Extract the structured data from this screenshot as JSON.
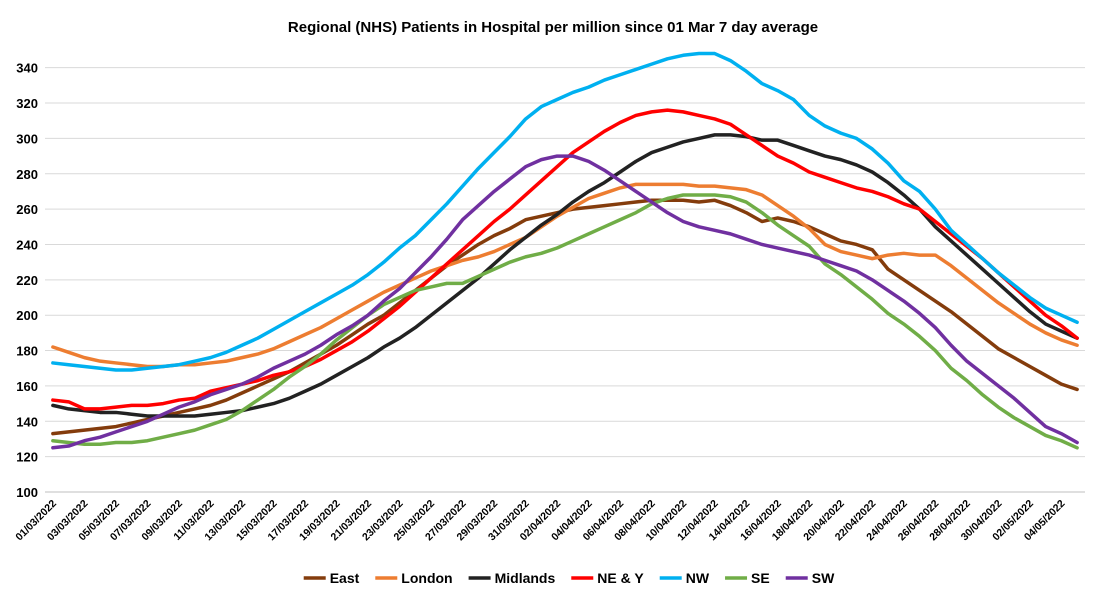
{
  "chart_data": {
    "type": "line",
    "title": "Regional (NHS) Patients in Hospital per million since 01 Mar 7 day average",
    "categories": [
      "01/03/2022",
      null,
      "03/03/2022",
      null,
      "05/03/2022",
      null,
      "07/03/2022",
      null,
      "09/03/2022",
      null,
      "11/03/2022",
      null,
      "13/03/2022",
      null,
      "15/03/2022",
      null,
      "17/03/2022",
      null,
      "19/03/2022",
      null,
      "21/03/2022",
      null,
      "23/03/2022",
      null,
      "25/03/2022",
      null,
      "27/03/2022",
      null,
      "29/03/2022",
      null,
      "31/03/2022",
      null,
      "02/04/2022",
      null,
      "04/04/2022",
      null,
      "06/04/2022",
      null,
      "08/04/2022",
      null,
      "10/04/2022",
      null,
      "12/04/2022",
      null,
      "14/04/2022",
      null,
      "16/04/2022",
      null,
      "18/04/2022",
      null,
      "20/04/2022",
      null,
      "22/04/2022",
      null,
      "24/04/2022",
      null,
      "26/04/2022",
      null,
      "28/04/2022",
      null,
      "30/04/2022",
      null,
      "02/05/2022",
      null,
      "04/05/2022",
      null
    ],
    "series": [
      {
        "name": "East",
        "color": "#843c0c",
        "values": [
          133,
          134,
          135,
          136,
          137,
          139,
          141,
          143,
          145,
          147,
          149,
          152,
          156,
          160,
          164,
          168,
          173,
          178,
          183,
          189,
          195,
          200,
          207,
          214,
          221,
          228,
          234,
          240,
          245,
          249,
          254,
          256,
          258,
          260,
          261,
          262,
          263,
          264,
          265,
          265,
          265,
          264,
          265,
          262,
          258,
          253,
          255,
          253,
          250,
          246,
          242,
          240,
          237,
          226,
          220,
          214,
          208,
          202,
          195,
          188,
          181,
          176,
          171,
          166,
          161,
          158
        ]
      },
      {
        "name": "London",
        "color": "#ed7d31",
        "values": [
          182,
          179,
          176,
          174,
          173,
          172,
          171,
          171,
          172,
          172,
          173,
          174,
          176,
          178,
          181,
          185,
          189,
          193,
          198,
          203,
          208,
          213,
          217,
          221,
          225,
          228,
          231,
          233,
          236,
          240,
          244,
          250,
          256,
          261,
          266,
          269,
          272,
          274,
          274,
          274,
          274,
          273,
          273,
          272,
          271,
          268,
          262,
          256,
          249,
          240,
          236,
          234,
          232,
          234,
          235,
          234,
          234,
          228,
          221,
          214,
          207,
          201,
          195,
          190,
          186,
          183
        ]
      },
      {
        "name": "Midlands",
        "color": "#222222",
        "values": [
          149,
          147,
          146,
          145,
          145,
          144,
          143,
          143,
          143,
          143,
          144,
          145,
          146,
          148,
          150,
          153,
          157,
          161,
          166,
          171,
          176,
          182,
          187,
          193,
          200,
          207,
          214,
          221,
          229,
          237,
          244,
          251,
          257,
          264,
          270,
          275,
          281,
          287,
          292,
          295,
          298,
          300,
          302,
          302,
          301,
          299,
          299,
          296,
          293,
          290,
          288,
          285,
          281,
          275,
          268,
          260,
          250,
          242,
          234,
          226,
          218,
          210,
          202,
          195,
          191,
          187
        ]
      },
      {
        "name": "NE & Y",
        "color": "#ff0000",
        "values": [
          152,
          151,
          147,
          147,
          148,
          149,
          149,
          150,
          152,
          153,
          157,
          159,
          161,
          163,
          166,
          168,
          171,
          175,
          180,
          185,
          191,
          198,
          205,
          213,
          221,
          229,
          237,
          245,
          253,
          260,
          268,
          276,
          284,
          292,
          298,
          304,
          309,
          313,
          315,
          316,
          315,
          313,
          311,
          308,
          302,
          296,
          290,
          286,
          281,
          278,
          275,
          272,
          270,
          267,
          263,
          260,
          253,
          246,
          239,
          232,
          224,
          216,
          208,
          200,
          194,
          187
        ]
      },
      {
        "name": "NW",
        "color": "#00b0f0",
        "values": [
          173,
          172,
          171,
          170,
          169,
          169,
          170,
          171,
          172,
          174,
          176,
          179,
          183,
          187,
          192,
          197,
          202,
          207,
          212,
          217,
          223,
          230,
          238,
          245,
          254,
          263,
          273,
          283,
          292,
          301,
          311,
          318,
          322,
          326,
          329,
          333,
          336,
          339,
          342,
          345,
          347,
          348,
          348,
          344,
          338,
          331,
          327,
          322,
          313,
          307,
          303,
          300,
          294,
          286,
          276,
          270,
          260,
          248,
          240,
          232,
          224,
          217,
          210,
          204,
          200,
          196
        ]
      },
      {
        "name": "SE",
        "color": "#70ad47",
        "values": [
          129,
          128,
          127,
          127,
          128,
          128,
          129,
          131,
          133,
          135,
          138,
          141,
          146,
          152,
          158,
          165,
          171,
          178,
          186,
          193,
          200,
          206,
          210,
          214,
          216,
          218,
          218,
          222,
          226,
          230,
          233,
          235,
          238,
          242,
          246,
          250,
          254,
          258,
          263,
          266,
          268,
          268,
          268,
          267,
          264,
          258,
          251,
          245,
          239,
          229,
          223,
          216,
          209,
          201,
          195,
          188,
          180,
          170,
          163,
          155,
          148,
          142,
          137,
          132,
          129,
          125
        ]
      },
      {
        "name": "SW",
        "color": "#7030a0",
        "values": [
          125,
          126,
          129,
          131,
          134,
          137,
          140,
          144,
          148,
          151,
          155,
          158,
          161,
          165,
          170,
          174,
          178,
          183,
          189,
          194,
          200,
          208,
          215,
          224,
          233,
          243,
          254,
          262,
          270,
          277,
          284,
          288,
          290,
          290,
          287,
          282,
          276,
          270,
          264,
          258,
          253,
          250,
          248,
          246,
          243,
          240,
          238,
          236,
          234,
          231,
          228,
          225,
          220,
          214,
          208,
          201,
          193,
          183,
          174,
          167,
          160,
          153,
          145,
          137,
          133,
          128
        ]
      }
    ],
    "ylim": [
      100,
      350
    ],
    "yticks": [
      100,
      120,
      140,
      160,
      180,
      200,
      220,
      240,
      260,
      280,
      300,
      320,
      340
    ],
    "grid": true,
    "legend": "bottom"
  }
}
